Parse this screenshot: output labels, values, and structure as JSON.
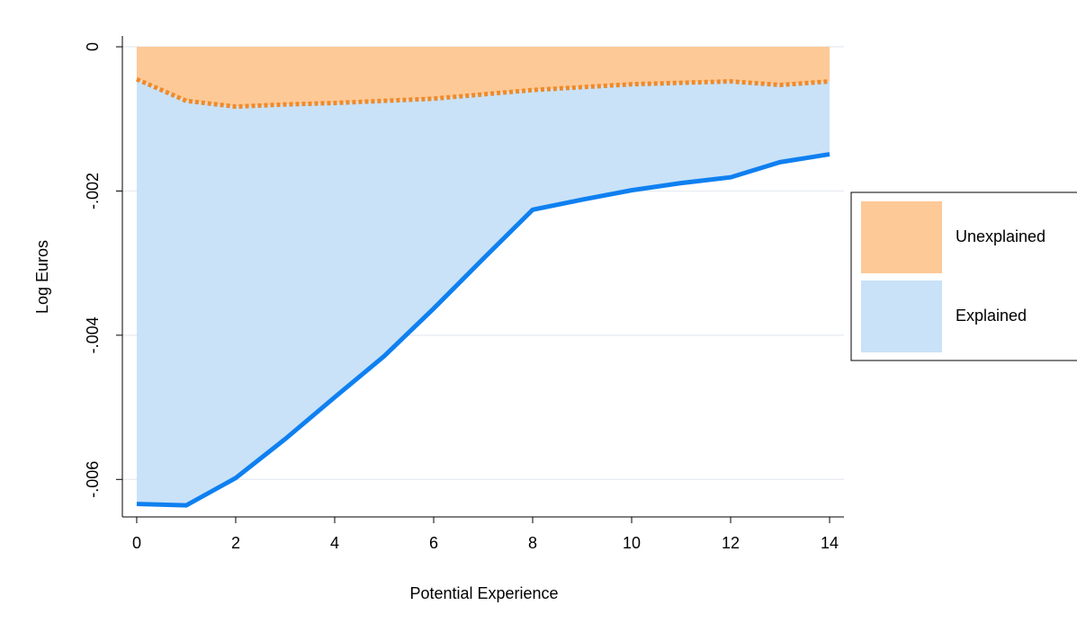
{
  "chart_data": {
    "type": "area",
    "stacked": true,
    "x_label": "Potential Experience",
    "y_label": "Log Euros",
    "x": [
      0,
      1,
      2,
      3,
      4,
      5,
      6,
      7,
      8,
      9,
      10,
      11,
      12,
      13,
      14
    ],
    "series": [
      {
        "name": "Unexplained",
        "color": "#fdc997",
        "line_color": "#ef8a2a",
        "line_style": "dotted",
        "values": [
          -0.00045,
          -0.00075,
          -0.00083,
          -0.0008,
          -0.00078,
          -0.00075,
          -0.00072,
          -0.00066,
          -0.0006,
          -0.00056,
          -0.00052,
          -0.0005,
          -0.00048,
          -0.00053,
          -0.00048
        ]
      },
      {
        "name": "Explained",
        "color": "#c9e2f8",
        "line_color": "#0f80f0",
        "line_style": "solid",
        "values": [
          -0.00589,
          -0.00561,
          -0.00515,
          -0.00464,
          -0.00408,
          -0.00354,
          -0.00291,
          -0.00228,
          -0.00166,
          -0.00156,
          -0.00147,
          -0.00139,
          -0.00133,
          -0.00107,
          -0.00101
        ]
      }
    ],
    "xlim": [
      -0.29,
      14.29
    ],
    "xticks": [
      0,
      2,
      4,
      6,
      8,
      10,
      12,
      14
    ],
    "ylim": [
      -0.00652,
      0.00015
    ],
    "yticks": [
      {
        "value": 0,
        "label": "0"
      },
      {
        "value": -0.002,
        "label": "-.002"
      },
      {
        "value": -0.004,
        "label": "-.004"
      },
      {
        "value": -0.006,
        "label": "-.006"
      }
    ],
    "grid": true,
    "legend": "right"
  }
}
